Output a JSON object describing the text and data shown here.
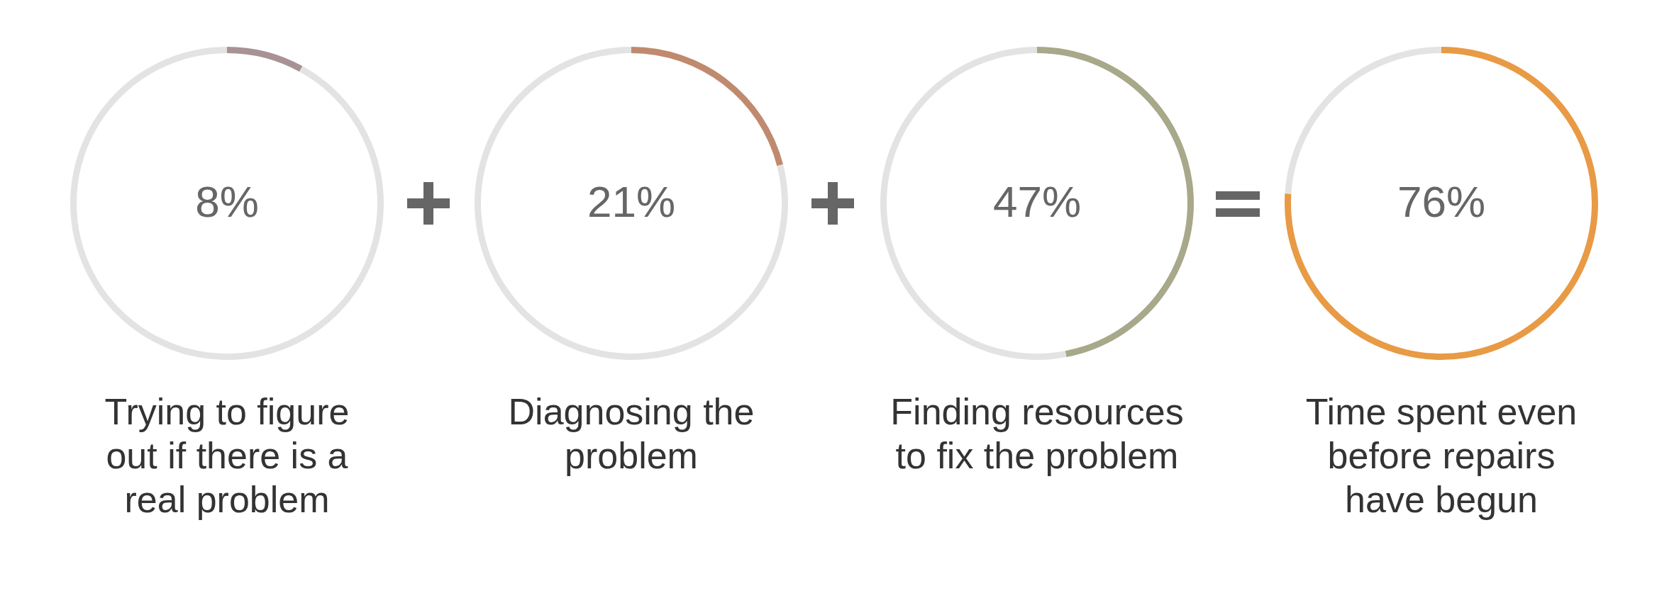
{
  "chart_data": [
    {
      "type": "donut",
      "title": "Trying to figure out if there is a real problem",
      "categories": [
        null,
        null
      ],
      "values": [
        8,
        92
      ],
      "colors": [
        "#a89294",
        "#e3e3e3"
      ],
      "value_labels": [
        "8%",
        null
      ]
    },
    {
      "type": "donut",
      "title": "Diagnosing the problem",
      "categories": [
        null,
        null
      ],
      "values": [
        21,
        79
      ],
      "colors": [
        "#c08a6e",
        "#e3e3e3"
      ],
      "value_labels": [
        "21%",
        null
      ]
    },
    {
      "type": "donut",
      "title": "Finding resources to fix the problem",
      "categories": [
        null,
        null
      ],
      "values": [
        47,
        53
      ],
      "colors": [
        "#a8a88a",
        "#e3e3e3"
      ],
      "value_labels": [
        "47%",
        null
      ]
    },
    {
      "type": "donut",
      "title": "Time spent even before repairs have begun",
      "categories": [
        null,
        null
      ],
      "values": [
        76,
        24
      ],
      "colors": [
        "#e89a45",
        "#e3e3e3"
      ],
      "value_labels": [
        "76%",
        null
      ]
    }
  ]
}
